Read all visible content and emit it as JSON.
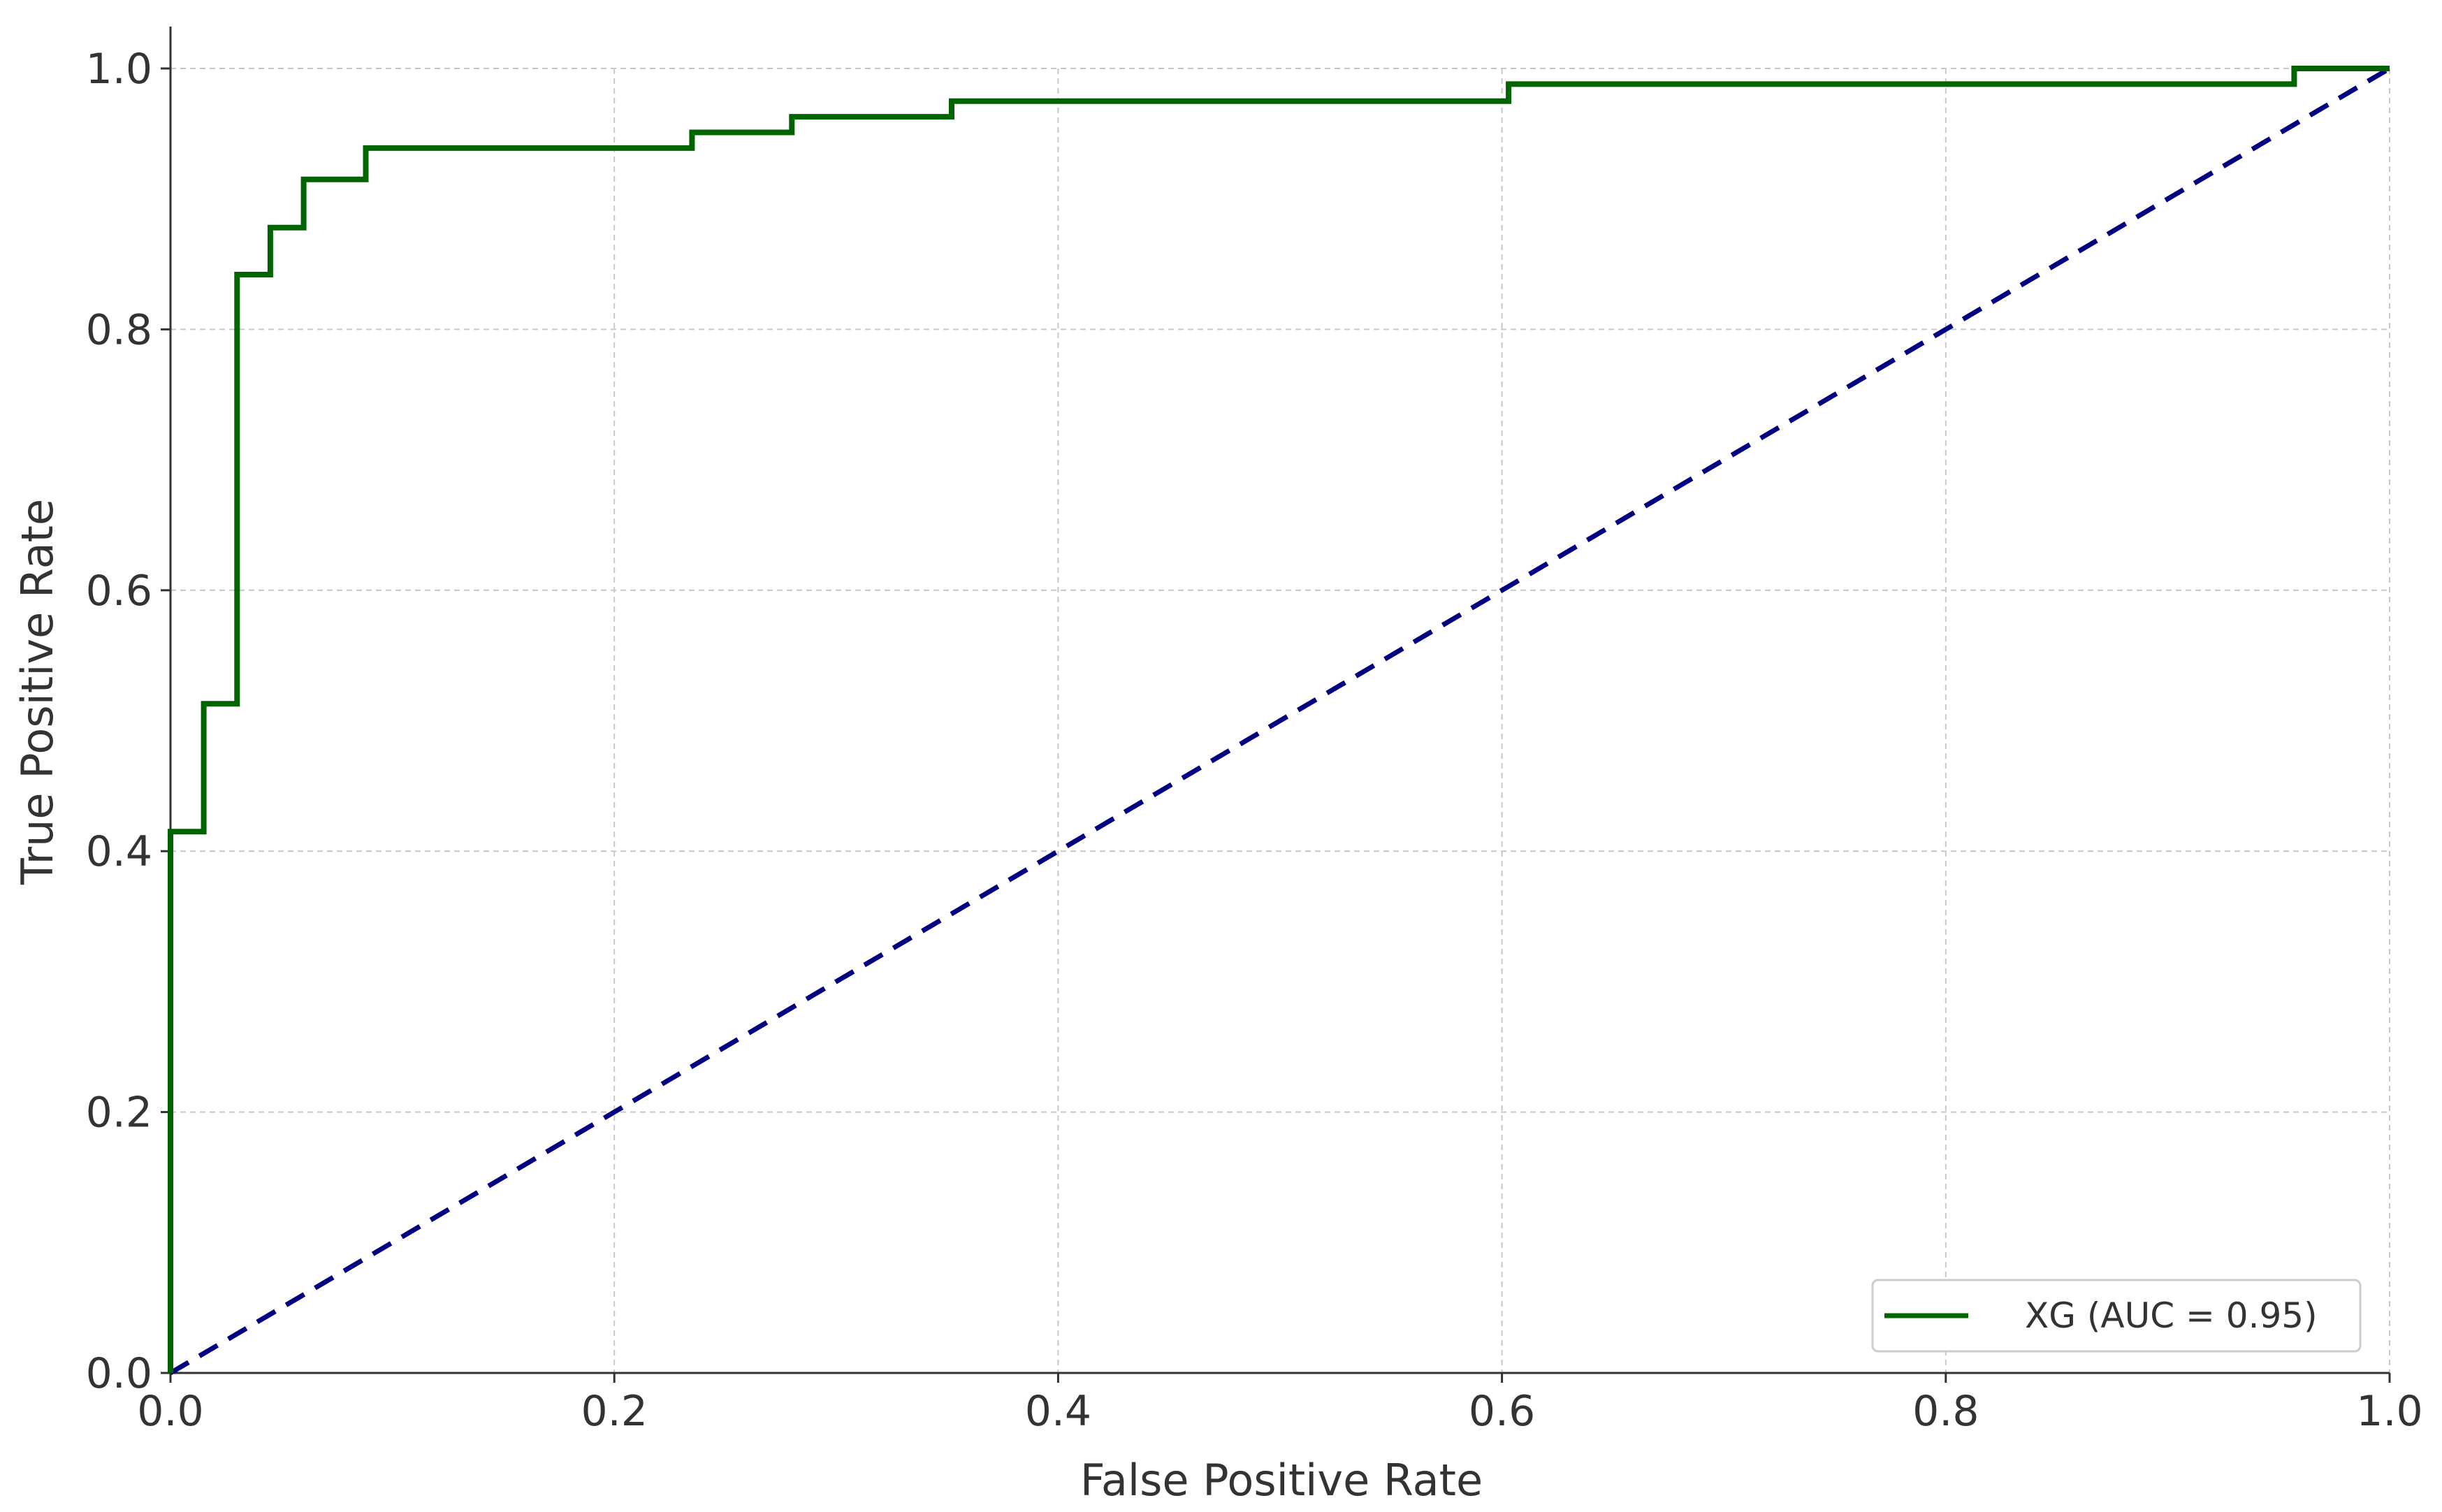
{
  "chart_data": {
    "type": "line",
    "title": "",
    "xlabel": "False Positive Rate",
    "ylabel": "True Positive Rate",
    "xlim": [
      0.0,
      1.0
    ],
    "ylim": [
      0.0,
      1.0
    ],
    "xticks": [
      "0.0",
      "0.2",
      "0.4",
      "0.6",
      "0.8",
      "1.0"
    ],
    "yticks": [
      "0.0",
      "0.2",
      "0.4",
      "0.6",
      "0.8",
      "1.0"
    ],
    "grid": true,
    "legend_position": "lower-right",
    "series": [
      {
        "name": "XG (AUC = 0.95)",
        "color": "#006400",
        "style": "solid",
        "x": [
          0.0,
          0.0,
          0.015,
          0.015,
          0.03,
          0.03,
          0.045,
          0.045,
          0.06,
          0.06,
          0.088,
          0.088,
          0.235,
          0.235,
          0.28,
          0.28,
          0.352,
          0.352,
          0.603,
          0.603,
          0.957,
          0.957,
          1.0
        ],
        "y": [
          0.0,
          0.415,
          0.415,
          0.513,
          0.513,
          0.842,
          0.842,
          0.878,
          0.878,
          0.915,
          0.915,
          0.939,
          0.939,
          0.951,
          0.951,
          0.963,
          0.963,
          0.975,
          0.975,
          0.988,
          0.988,
          1.0,
          1.0
        ]
      },
      {
        "name": "",
        "color": "#000080",
        "style": "dashed",
        "x": [
          0.0,
          1.0
        ],
        "y": [
          0.0,
          1.0
        ]
      }
    ]
  }
}
